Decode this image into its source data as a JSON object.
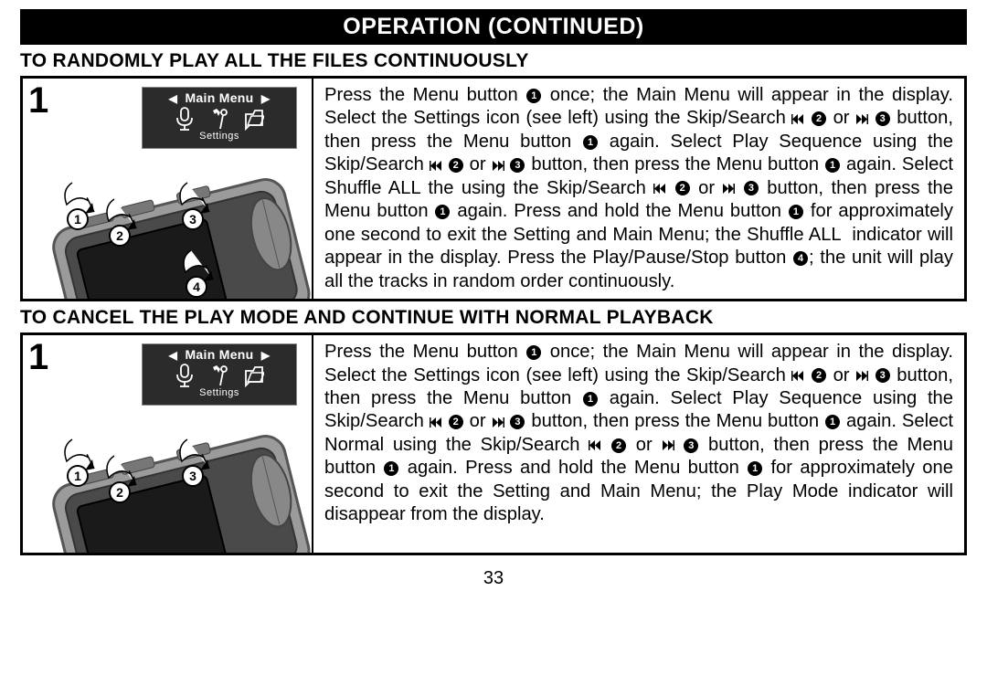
{
  "page_number": "33",
  "header": "OPERATION (CONTINUED)",
  "display": {
    "title": "Main Menu",
    "subtitle": "Settings"
  },
  "sections": [
    {
      "heading": "TO RANDOMLY PLAY ALL THE FILES CONTINUOUSLY",
      "step": "1",
      "callouts": [
        "1",
        "2",
        "3",
        "4"
      ],
      "text_parts": [
        "Press the Menu button ",
        {
          "g": "c1"
        },
        " once; the Main Menu will appear in the display. Select the Settings icon (see left) using the Skip/Search ",
        {
          "g": "rew"
        },
        " ",
        {
          "g": "c2"
        },
        " or ",
        {
          "g": "ffw"
        },
        " ",
        {
          "g": "c3"
        },
        " button, then press the Menu button ",
        {
          "g": "c1"
        },
        " again. Select Play Sequence using the Skip/Search ",
        {
          "g": "rew"
        },
        " ",
        {
          "g": "c2"
        },
        " or ",
        {
          "g": "ffw"
        },
        " ",
        {
          "g": "c3"
        },
        " button, then press the Menu button ",
        {
          "g": "c1"
        },
        " again. Select Shuffle ALL the using the Skip/Search ",
        {
          "g": "rew"
        },
        " ",
        {
          "g": "c2"
        },
        " or ",
        {
          "g": "ffw"
        },
        " ",
        {
          "g": "c3"
        },
        " button, then press the Menu button ",
        {
          "g": "c1"
        },
        " again. Press and hold the Menu button ",
        {
          "g": "c1"
        },
        " for approximately one second to exit the Setting and Main Menu; the Shuffle ALL  indicator will appear in the display. Press the Play/Pause/Stop button ",
        {
          "g": "c4"
        },
        "; the unit will play all the tracks in random order continuously."
      ]
    },
    {
      "heading": "TO CANCEL THE PLAY MODE AND CONTINUE WITH NORMAL PLAYBACK",
      "step": "1",
      "callouts": [
        "1",
        "2",
        "3"
      ],
      "text_parts": [
        "Press the Menu button ",
        {
          "g": "c1"
        },
        " once; the Main Menu will appear in the display. Select the Settings icon (see left) using the Skip/Search ",
        {
          "g": "rew"
        },
        " ",
        {
          "g": "c2"
        },
        " or ",
        {
          "g": "ffw"
        },
        " ",
        {
          "g": "c3"
        },
        " button, then press the Menu button ",
        {
          "g": "c1"
        },
        " again. Select Play Sequence using the Skip/Search ",
        {
          "g": "rew"
        },
        " ",
        {
          "g": "c2"
        },
        " or ",
        {
          "g": "ffw"
        },
        " ",
        {
          "g": "c3"
        },
        " button, then press the Menu button ",
        {
          "g": "c1"
        },
        " again. Select Normal using the Skip/Search ",
        {
          "g": "rew"
        },
        " ",
        {
          "g": "c2"
        },
        " or ",
        {
          "g": "ffw"
        },
        " ",
        {
          "g": "c3"
        },
        " button, then press the Menu button ",
        {
          "g": "c1"
        },
        " again. Press and hold the Menu button ",
        {
          "g": "c1"
        },
        " for approximately one second to exit the Setting and Main Menu; the Play Mode indicator will disappear from the display."
      ]
    }
  ],
  "colors": {
    "black": "#000000",
    "white": "#ffffff",
    "device_body": "#9b9b9b",
    "device_dark": "#4a4a4a",
    "device_screen": "#1a1a1a",
    "display_bg": "#2b2b2b"
  }
}
